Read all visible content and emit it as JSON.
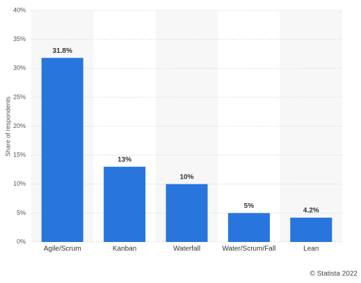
{
  "chart_data": {
    "type": "bar",
    "categories": [
      "Agile/Scrum",
      "Kanban",
      "Waterfall",
      "Water/Scrum/Fall",
      "Lean"
    ],
    "values": [
      31.8,
      13,
      10,
      5,
      4.2
    ],
    "value_labels": [
      "31.8%",
      "13%",
      "10%",
      "5%",
      "4.2%"
    ],
    "color": "#2876dd",
    "ylabel": "Share of respondents",
    "ylim": [
      0,
      40
    ],
    "yticks": [
      {
        "value": 0,
        "label": "0%"
      },
      {
        "value": 5,
        "label": "5%"
      },
      {
        "value": 10,
        "label": "10%"
      },
      {
        "value": 15,
        "label": "15%"
      },
      {
        "value": 20,
        "label": "20%"
      },
      {
        "value": 25,
        "label": "25%"
      },
      {
        "value": 30,
        "label": "30%"
      },
      {
        "value": 35,
        "label": "35%"
      },
      {
        "value": 40,
        "label": "40%"
      }
    ],
    "grid": true
  },
  "footer": "© Statista 2022"
}
